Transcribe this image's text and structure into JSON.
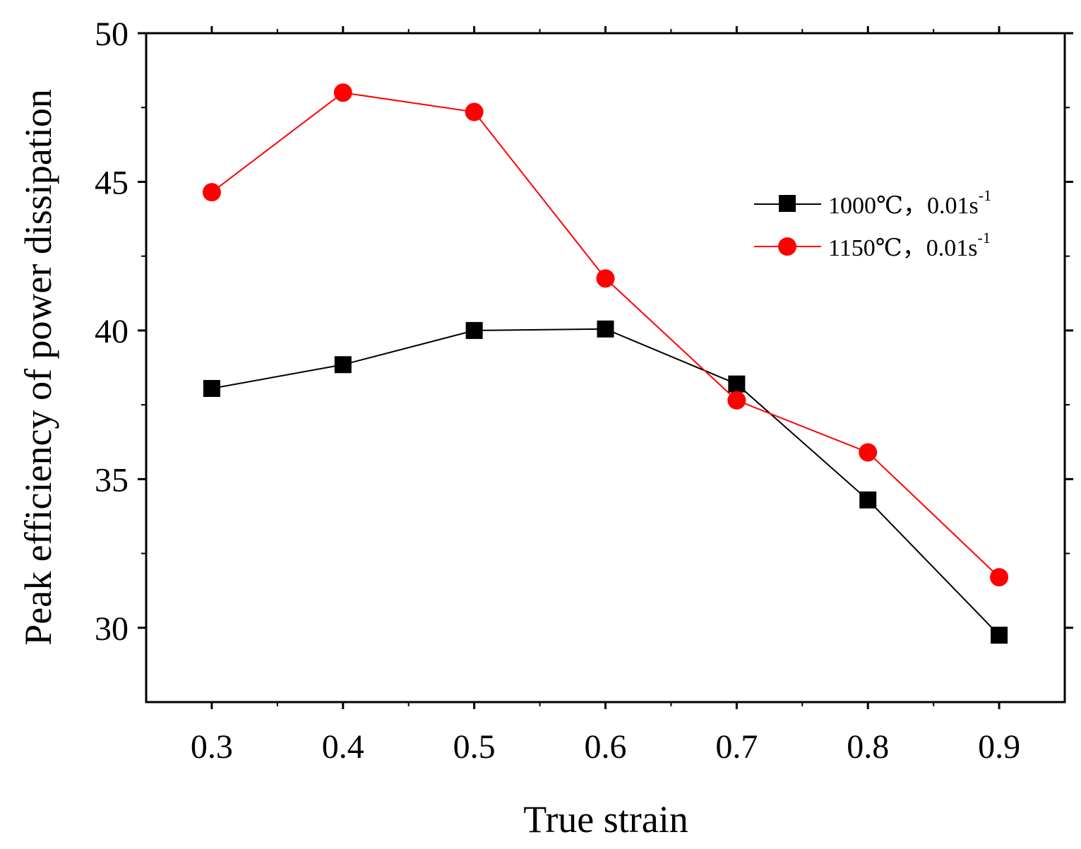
{
  "chart_data": {
    "type": "line",
    "title": "",
    "xlabel": "True strain",
    "ylabel": "Peak efficiency of power dissipation",
    "xlim": [
      0.25,
      0.95
    ],
    "ylim": [
      27.5,
      50
    ],
    "x_ticks": [
      0.3,
      0.4,
      0.5,
      0.6,
      0.7,
      0.8,
      0.9
    ],
    "x_tick_labels": [
      "0.3",
      "0.4",
      "0.5",
      "0.6",
      "0.7",
      "0.8",
      "0.9"
    ],
    "y_ticks": [
      30,
      35,
      40,
      45,
      50
    ],
    "y_tick_labels": [
      "30",
      "35",
      "40",
      "45",
      "50"
    ],
    "grid": false,
    "legend_position": "right",
    "x": [
      0.3,
      0.4,
      0.5,
      0.6,
      0.7,
      0.8,
      0.9
    ],
    "series": [
      {
        "name": "1000℃，0.01s",
        "name_superscript": "-1",
        "marker": "square",
        "color": "#000000",
        "values": [
          38.05,
          38.85,
          40.0,
          40.05,
          38.2,
          34.3,
          29.75
        ]
      },
      {
        "name": "1150℃，0.01s",
        "name_superscript": "-1",
        "marker": "circle",
        "color": "#ff0000",
        "values": [
          44.65,
          48.0,
          47.35,
          41.75,
          37.65,
          35.9,
          31.7
        ]
      }
    ]
  }
}
